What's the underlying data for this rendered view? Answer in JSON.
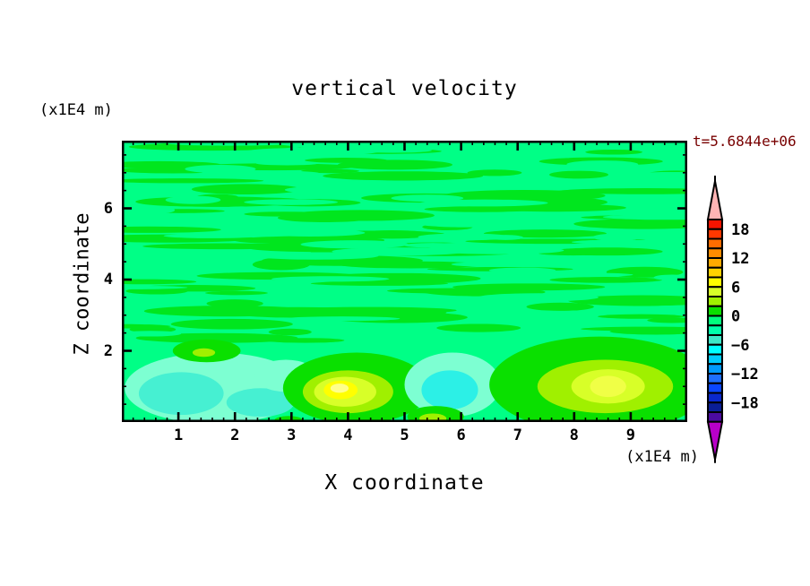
{
  "title": "vertical velocity",
  "timestamp": "t=5.6844e+06",
  "timestamp_color": "#780000",
  "axes": {
    "x_label": "X coordinate",
    "y_label": "Z coordinate",
    "x_unit": "(x1E4 m)",
    "y_unit": "(x1E4 m)",
    "x_range": [
      0,
      10
    ],
    "y_range": [
      0,
      7.9
    ],
    "x_major_ticks": [
      1,
      2,
      3,
      4,
      5,
      6,
      7,
      8,
      9
    ],
    "y_major_ticks": [
      2,
      4,
      6
    ],
    "x_minor_step": 0.2,
    "y_minor_step": 0.5
  },
  "colorbar": {
    "labels": [
      "18",
      "12",
      "6",
      "0",
      "−6",
      "−12",
      "−18"
    ],
    "label_cell_interval": 3,
    "cell_value_step": 2,
    "top_cell_upper_value": 20,
    "cell_colors": [
      "#f61400",
      "#ff3800",
      "#ff6c00",
      "#ff8c00",
      "#ffaa00",
      "#ffd200",
      "#ffff00",
      "#d8ff28",
      "#a0f000",
      "#0ae000",
      "#00ff7d",
      "#00ffaa",
      "#3ce8c8",
      "#00ffff",
      "#00ccff",
      "#0099ff",
      "#1e6eff",
      "#0a46ff",
      "#0a28cd",
      "#0a1e96",
      "#4b0ba0"
    ],
    "over_range_color": "#ffb4b4",
    "under_range_color": "#b800c8",
    "outline_color": "#000000"
  },
  "chart_data": {
    "type": "heatmap",
    "title": "vertical velocity",
    "xlabel": "X coordinate (x1E4 m)",
    "ylabel": "Z coordinate (x1E4 m)",
    "time_annotation": "t=5.6844e+06",
    "x_range": [
      0,
      10
    ],
    "y_range": [
      0,
      7.9
    ],
    "value_range_shown": [
      -20,
      20
    ],
    "contour_interval": 2,
    "grid": false,
    "legend_position": "right-colorbar",
    "description": "Filled contour field of vertical velocity. Upper region (z>2.3) is weak noise around 0 shown as horizontal green/spring-green streaks. Lower boundary layer (z<2.3) has coherent cells: downdraft (cyan, w~-4 to -8) near x=0.3-3.3 and x=5.3-6.5; updrafts (green/yellow, w~+2 to +8) centered near x=4 and x=8.5.",
    "background_color": "#00ff86",
    "streaks": {
      "y_min": 2.25,
      "y_max": 7.95,
      "seed": 987654321,
      "layers": [
        {
          "count": 90,
          "color": "#00e61e",
          "rx_min": 0.35,
          "rx_max": 1.55,
          "ry_min": 0.055,
          "ry_max": 0.16
        },
        {
          "count": 48,
          "color": "#00ff86",
          "rx_min": 0.3,
          "rx_max": 1.2,
          "ry_min": 0.05,
          "ry_max": 0.12
        }
      ]
    },
    "blobs": [
      {
        "x": 1.65,
        "y": 0.95,
        "rx": 1.6,
        "ry": 1.0,
        "color": "#7dffd2",
        "value": -3
      },
      {
        "x": 1.05,
        "y": 0.8,
        "rx": 0.75,
        "ry": 0.6,
        "color": "#46f0d2",
        "value": -5
      },
      {
        "x": 2.45,
        "y": 0.55,
        "rx": 0.6,
        "ry": 0.4,
        "color": "#46f0d2",
        "value": -5
      },
      {
        "x": 2.9,
        "y": 1.3,
        "rx": 0.55,
        "ry": 0.45,
        "color": "#7dffd2",
        "value": -3
      },
      {
        "x": 1.5,
        "y": 2.0,
        "rx": 0.6,
        "ry": 0.32,
        "color": "#0ae000",
        "value": 1
      },
      {
        "x": 1.45,
        "y": 1.95,
        "rx": 0.2,
        "ry": 0.12,
        "color": "#a0f000",
        "value": 3
      },
      {
        "x": 4.15,
        "y": 0.95,
        "rx": 1.3,
        "ry": 1.0,
        "color": "#0ae000",
        "value": 1
      },
      {
        "x": 4.0,
        "y": 0.85,
        "rx": 0.8,
        "ry": 0.6,
        "color": "#a0f000",
        "value": 3
      },
      {
        "x": 3.95,
        "y": 0.85,
        "rx": 0.55,
        "ry": 0.42,
        "color": "#d8ff28",
        "value": 5
      },
      {
        "x": 3.87,
        "y": 0.9,
        "rx": 0.3,
        "ry": 0.26,
        "color": "#ffff00",
        "value": 7
      },
      {
        "x": 3.85,
        "y": 0.95,
        "rx": 0.16,
        "ry": 0.13,
        "color": "#ffff8c",
        "value": 8
      },
      {
        "x": 5.85,
        "y": 1.05,
        "rx": 0.85,
        "ry": 0.9,
        "color": "#7dffd2",
        "value": -3
      },
      {
        "x": 5.8,
        "y": 0.9,
        "rx": 0.5,
        "ry": 0.55,
        "color": "#2cf0e6",
        "value": -5
      },
      {
        "x": 5.55,
        "y": 0.15,
        "rx": 0.5,
        "ry": 0.3,
        "color": "#0ae000",
        "value": 1
      },
      {
        "x": 5.5,
        "y": 0.1,
        "rx": 0.24,
        "ry": 0.14,
        "color": "#a0f000",
        "value": 3
      },
      {
        "x": 2.95,
        "y": 0.05,
        "rx": 0.25,
        "ry": 0.12,
        "color": "#0ae000",
        "value": 1
      },
      {
        "x": 8.45,
        "y": 1.05,
        "rx": 1.95,
        "ry": 1.35,
        "color": "#0ae000",
        "value": 1
      },
      {
        "x": 8.55,
        "y": 1.0,
        "rx": 1.2,
        "ry": 0.75,
        "color": "#a0f000",
        "value": 3
      },
      {
        "x": 8.6,
        "y": 1.0,
        "rx": 0.65,
        "ry": 0.48,
        "color": "#d8ff28",
        "value": 5
      },
      {
        "x": 8.6,
        "y": 1.0,
        "rx": 0.32,
        "ry": 0.3,
        "color": "#f0ff46",
        "value": 6
      }
    ]
  }
}
